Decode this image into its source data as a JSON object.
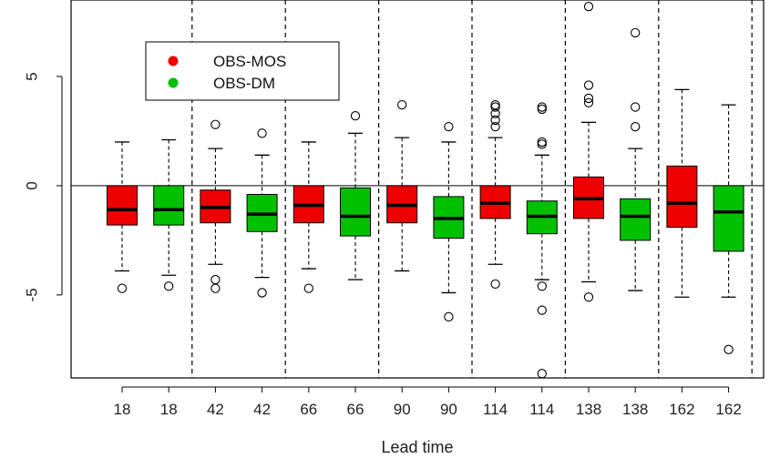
{
  "chart_data": {
    "type": "boxplot",
    "xlabel": "Lead time",
    "ylabel": "",
    "ylim": [
      -8.8,
      8.5
    ],
    "yticks": [
      -5,
      0,
      5
    ],
    "ytick_labels": [
      "-5",
      "0",
      "5"
    ],
    "reference_line": 0,
    "legend": {
      "position": "top-left",
      "items": [
        {
          "label": "OBS-MOS",
          "color": "#ee0000"
        },
        {
          "label": "OBS-DM",
          "color": "#00c000"
        }
      ]
    },
    "groups": [
      "18",
      "42",
      "66",
      "90",
      "114",
      "138",
      "162"
    ],
    "boxes": [
      {
        "label": "18",
        "series": "OBS-MOS",
        "color": "#ee0000",
        "whisker_low": -3.9,
        "q1": -1.8,
        "median": -1.1,
        "q3": 0.0,
        "whisker_high": 2.0,
        "outliers": [
          -4.7
        ]
      },
      {
        "label": "18",
        "series": "OBS-DM",
        "color": "#00c000",
        "whisker_low": -4.1,
        "q1": -1.8,
        "median": -1.1,
        "q3": 0.0,
        "whisker_high": 2.1,
        "outliers": [
          -4.6
        ]
      },
      {
        "label": "42",
        "series": "OBS-MOS",
        "color": "#ee0000",
        "whisker_low": -3.6,
        "q1": -1.7,
        "median": -1.0,
        "q3": -0.2,
        "whisker_high": 1.7,
        "outliers": [
          -4.3,
          -4.7,
          2.8
        ]
      },
      {
        "label": "42",
        "series": "OBS-DM",
        "color": "#00c000",
        "whisker_low": -4.2,
        "q1": -2.1,
        "median": -1.3,
        "q3": -0.4,
        "whisker_high": 1.4,
        "outliers": [
          -4.9,
          2.4
        ]
      },
      {
        "label": "66",
        "series": "OBS-MOS",
        "color": "#ee0000",
        "whisker_low": -3.8,
        "q1": -1.7,
        "median": -0.9,
        "q3": 0.0,
        "whisker_high": 2.0,
        "outliers": [
          -4.7
        ]
      },
      {
        "label": "66",
        "series": "OBS-DM",
        "color": "#00c000",
        "whisker_low": -4.3,
        "q1": -2.3,
        "median": -1.4,
        "q3": -0.1,
        "whisker_high": 2.4,
        "outliers": [
          3.2
        ]
      },
      {
        "label": "90",
        "series": "OBS-MOS",
        "color": "#ee0000",
        "whisker_low": -3.9,
        "q1": -1.7,
        "median": -0.9,
        "q3": 0.0,
        "whisker_high": 2.2,
        "outliers": [
          3.7
        ]
      },
      {
        "label": "90",
        "series": "OBS-DM",
        "color": "#00c000",
        "whisker_low": -4.9,
        "q1": -2.4,
        "median": -1.5,
        "q3": -0.5,
        "whisker_high": 2.0,
        "outliers": [
          -6.0,
          2.7
        ]
      },
      {
        "label": "114",
        "series": "OBS-MOS",
        "color": "#ee0000",
        "whisker_low": -3.6,
        "q1": -1.5,
        "median": -0.8,
        "q3": 0.0,
        "whisker_high": 2.2,
        "outliers": [
          -4.5,
          2.7,
          3.0,
          3.3,
          3.6,
          3.7
        ]
      },
      {
        "label": "114",
        "series": "OBS-DM",
        "color": "#00c000",
        "whisker_low": -4.3,
        "q1": -2.2,
        "median": -1.4,
        "q3": -0.7,
        "whisker_high": 1.4,
        "outliers": [
          -4.6,
          -5.7,
          -8.6,
          1.9,
          2.0,
          3.5,
          3.6
        ]
      },
      {
        "label": "138",
        "series": "OBS-MOS",
        "color": "#ee0000",
        "whisker_low": -4.4,
        "q1": -1.5,
        "median": -0.6,
        "q3": 0.4,
        "whisker_high": 2.9,
        "outliers": [
          -5.1,
          3.8,
          4.0,
          4.6,
          8.2
        ]
      },
      {
        "label": "138",
        "series": "OBS-DM",
        "color": "#00c000",
        "whisker_low": -4.8,
        "q1": -2.5,
        "median": -1.4,
        "q3": -0.6,
        "whisker_high": 1.7,
        "outliers": [
          2.7,
          3.6,
          7.0
        ]
      },
      {
        "label": "162",
        "series": "OBS-MOS",
        "color": "#ee0000",
        "whisker_low": -5.1,
        "q1": -1.9,
        "median": -0.8,
        "q3": 0.9,
        "whisker_high": 4.4,
        "outliers": []
      },
      {
        "label": "162",
        "series": "OBS-DM",
        "color": "#00c000",
        "whisker_low": -5.1,
        "q1": -3.0,
        "median": -1.2,
        "q3": 0.0,
        "whisker_high": 3.7,
        "outliers": [
          -7.5
        ]
      }
    ]
  }
}
